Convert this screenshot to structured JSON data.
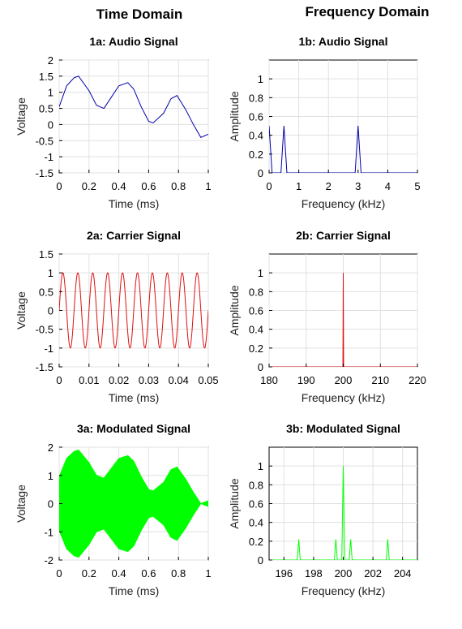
{
  "headers": {
    "time": "Time Domain",
    "freq": "Frequency Domain"
  },
  "colors": {
    "audio": "#0000aa",
    "carrier": "#dd1111",
    "modulated": "#00ff00"
  },
  "chart_data": [
    {
      "id": "1a",
      "type": "line",
      "title": "1a: Audio Signal",
      "xlabel": "Time (ms)",
      "ylabel": "Voltage",
      "xlim": [
        0,
        1
      ],
      "ylim": [
        -1.5,
        2
      ],
      "xticks": [
        0,
        0.2,
        0.4,
        0.6,
        0.8,
        1
      ],
      "xtick_labels": [
        "0",
        "0.2",
        "0.4",
        "0.6",
        "0.8",
        "1"
      ],
      "yticks": [
        -1.5,
        -1,
        -0.5,
        0,
        0.5,
        1,
        1.5,
        2
      ],
      "ytick_labels": [
        "-1.5",
        "-1",
        "-0.5",
        "0",
        "0.5",
        "1",
        "1.5",
        "2"
      ],
      "grid": true,
      "series": [
        {
          "signal": "0.5 + 0.5*sin(2*pi*3*t) + 0.5*sin(2*pi*0.5*t) - approx: audio at 0.5 kHz and 3 kHz plus DC 0.5",
          "color": "#0000aa",
          "x": [
            0,
            0.05,
            0.1,
            0.13,
            0.2,
            0.25,
            0.3,
            0.35,
            0.4,
            0.46,
            0.5,
            0.55,
            0.6,
            0.63,
            0.7,
            0.75,
            0.79,
            0.85,
            0.9,
            0.95,
            1
          ],
          "y": [
            0.55,
            1.2,
            1.45,
            1.5,
            1.05,
            0.6,
            0.5,
            0.85,
            1.2,
            1.3,
            1.1,
            0.55,
            0.1,
            0.05,
            0.35,
            0.8,
            0.9,
            0.45,
            0.0,
            -0.4,
            -0.3
          ]
        }
      ]
    },
    {
      "id": "1b",
      "type": "line",
      "title": "1b: Audio Signal",
      "xlabel": "Frequency (kHz)",
      "ylabel": "Amplitude",
      "xlim": [
        0,
        5
      ],
      "ylim": [
        0,
        1.2
      ],
      "xticks": [
        0,
        1,
        2,
        3,
        4,
        5
      ],
      "xtick_labels": [
        "0",
        "1",
        "2",
        "3",
        "4",
        "5"
      ],
      "yticks": [
        0,
        0.2,
        0.4,
        0.6,
        0.8,
        1
      ],
      "ytick_labels": [
        "0",
        "0.2",
        "0.4",
        "0.6",
        "0.8",
        "1"
      ],
      "grid": true,
      "series": [
        {
          "color": "#0000aa",
          "x": [
            0,
            0.1,
            0.4,
            0.5,
            0.6,
            2.9,
            3.0,
            3.1,
            5
          ],
          "y": [
            0.5,
            0,
            0,
            0.5,
            0,
            0,
            0.5,
            0,
            0
          ]
        }
      ]
    },
    {
      "id": "2a",
      "type": "line",
      "title": "2a: Carrier Signal",
      "xlabel": "Time (ms)",
      "ylabel": "Voltage",
      "xlim": [
        0,
        0.05
      ],
      "ylim": [
        -1.5,
        1.5
      ],
      "xticks": [
        0,
        0.01,
        0.02,
        0.03,
        0.04,
        0.05
      ],
      "xtick_labels": [
        "0",
        "0.01",
        "0.02",
        "0.03",
        "0.04",
        "0.05"
      ],
      "yticks": [
        -1.5,
        -1,
        -0.5,
        0,
        0.5,
        1,
        1.5
      ],
      "ytick_labels": [
        "-1.5",
        "-1",
        "-0.5",
        "0",
        "0.5",
        "1",
        "1.5"
      ],
      "grid": true,
      "series": [
        {
          "color": "#dd1111",
          "frequency_khz": 200,
          "amplitude": 1,
          "function": "sin"
        }
      ]
    },
    {
      "id": "2b",
      "type": "line",
      "title": "2b: Carrier Signal",
      "xlabel": "Frequency (kHz)",
      "ylabel": "Amplitude",
      "xlim": [
        180,
        220
      ],
      "ylim": [
        0,
        1.2
      ],
      "xticks": [
        180,
        190,
        200,
        210,
        220
      ],
      "xtick_labels": [
        "180",
        "190",
        "200",
        "210",
        "220"
      ],
      "yticks": [
        0,
        0.2,
        0.4,
        0.6,
        0.8,
        1
      ],
      "ytick_labels": [
        "0",
        "0.2",
        "0.4",
        "0.6",
        "0.8",
        "1"
      ],
      "grid": true,
      "series": [
        {
          "color": "#dd1111",
          "x": [
            180,
            199.9,
            200,
            200.1,
            220
          ],
          "y": [
            0,
            0,
            1,
            0,
            0
          ]
        }
      ]
    },
    {
      "id": "3a",
      "type": "area",
      "title": "3a: Modulated Signal",
      "xlabel": "Time (ms)",
      "ylabel": "Voltage",
      "xlim": [
        0,
        1
      ],
      "ylim": [
        -2,
        2
      ],
      "xticks": [
        0,
        0.2,
        0.4,
        0.6,
        0.8,
        1
      ],
      "xtick_labels": [
        "0",
        "0.2",
        "0.4",
        "0.6",
        "0.8",
        "1"
      ],
      "yticks": [
        -2,
        -1,
        0,
        1,
        2
      ],
      "ytick_labels": [
        "-2",
        "-1",
        "0",
        "1",
        "2"
      ],
      "grid": true,
      "series": [
        {
          "color": "#00ff00",
          "envelope_of": "1a",
          "x": [
            0,
            0.05,
            0.1,
            0.13,
            0.2,
            0.25,
            0.3,
            0.35,
            0.4,
            0.46,
            0.5,
            0.55,
            0.6,
            0.63,
            0.7,
            0.75,
            0.79,
            0.85,
            0.9,
            0.95,
            1
          ],
          "envelope": [
            0.55,
            1.2,
            1.45,
            1.5,
            1.05,
            0.6,
            0.5,
            0.85,
            1.2,
            1.3,
            1.1,
            0.55,
            0.1,
            0.05,
            0.35,
            0.8,
            0.9,
            0.45,
            0.0,
            -0.4,
            -0.3
          ],
          "offset": 0.4
        }
      ]
    },
    {
      "id": "3b",
      "type": "line",
      "title": "3b: Modulated Signal",
      "xlabel": "Frequency (kHz)",
      "ylabel": "Amplitude",
      "xlim": [
        195,
        205
      ],
      "ylim": [
        0,
        1.2
      ],
      "xticks": [
        196,
        198,
        200,
        202,
        204
      ],
      "xtick_labels": [
        "196",
        "198",
        "200",
        "202",
        "204"
      ],
      "yticks": [
        0,
        0.2,
        0.4,
        0.6,
        0.8,
        1
      ],
      "ytick_labels": [
        "0",
        "0.2",
        "0.4",
        "0.6",
        "0.8",
        "1"
      ],
      "grid": true,
      "series": [
        {
          "color": "#00ff00",
          "x": [
            195,
            196.9,
            197,
            197.1,
            199.4,
            199.5,
            199.6,
            199.9,
            200,
            200.1,
            200.4,
            200.5,
            200.6,
            202.9,
            203,
            203.1,
            205
          ],
          "y": [
            0,
            0,
            0.22,
            0,
            0,
            0.22,
            0,
            0,
            1,
            0,
            0,
            0.22,
            0,
            0,
            0.22,
            0,
            0
          ]
        }
      ]
    }
  ]
}
